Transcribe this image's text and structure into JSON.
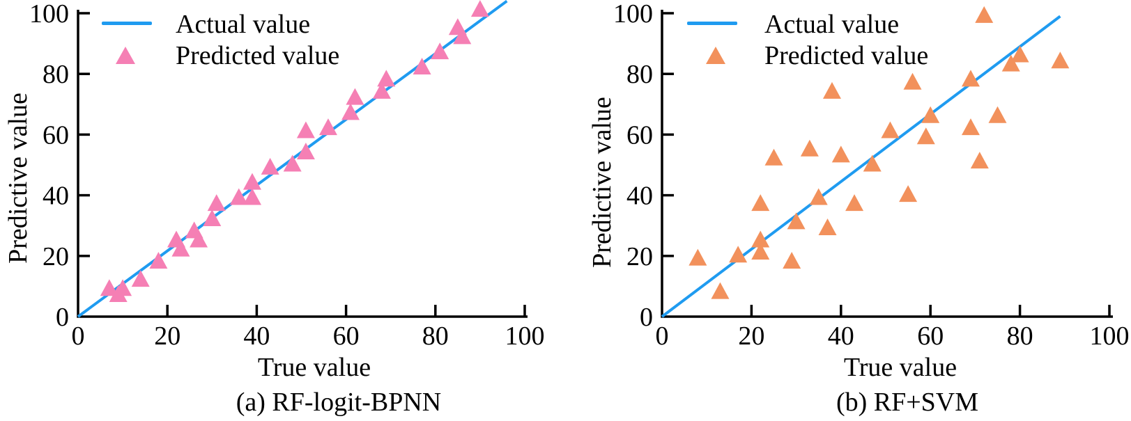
{
  "figure": {
    "type": "dual-scatter-comparison",
    "background": "#ffffff"
  },
  "colors": {
    "actual_line": "#1f9bf0",
    "predicted_a": "#f57fb4",
    "predicted_b": "#f2915c",
    "axis": "#000000",
    "text": "#000000"
  },
  "chart_data": [
    {
      "type": "scatter",
      "caption": "(a) RF-logit-BPNN",
      "xlabel": "True value",
      "ylabel": "Predictive value",
      "xlim": [
        0,
        100
      ],
      "ylim": [
        0,
        100
      ],
      "xticks": [
        0,
        20,
        40,
        60,
        80,
        100
      ],
      "yticks": [
        0,
        20,
        40,
        60,
        80,
        100
      ],
      "grid": false,
      "legend_position": "top-left-inside",
      "legend": {
        "entries": [
          {
            "label": "Actual value",
            "type": "line",
            "color": "#1f9bf0"
          },
          {
            "label": "Predicted value",
            "type": "triangle",
            "color": "#f57fb4"
          }
        ]
      },
      "line_series": {
        "name": "Actual value",
        "color": "#1f9bf0",
        "x": [
          0,
          96
        ],
        "y": [
          0,
          104
        ]
      },
      "scatter_series": {
        "name": "Predicted value",
        "marker": "triangle",
        "color": "#f57fb4",
        "points": [
          [
            7,
            9
          ],
          [
            9,
            7
          ],
          [
            10,
            9
          ],
          [
            14,
            12
          ],
          [
            18,
            18
          ],
          [
            22,
            25
          ],
          [
            23,
            22
          ],
          [
            26,
            28
          ],
          [
            27,
            25
          ],
          [
            30,
            32
          ],
          [
            31,
            37
          ],
          [
            36,
            39
          ],
          [
            39,
            39
          ],
          [
            39,
            44
          ],
          [
            43,
            49
          ],
          [
            48,
            50
          ],
          [
            51,
            54
          ],
          [
            51,
            61
          ],
          [
            56,
            62
          ],
          [
            61,
            67
          ],
          [
            62,
            72
          ],
          [
            68,
            74
          ],
          [
            69,
            78
          ],
          [
            77,
            82
          ],
          [
            81,
            87
          ],
          [
            85,
            95
          ],
          [
            86,
            92
          ],
          [
            90,
            101
          ]
        ]
      }
    },
    {
      "type": "scatter",
      "caption": "(b) RF+SVM",
      "xlabel": "True value",
      "ylabel": "Predictive value",
      "xlim": [
        0,
        100
      ],
      "ylim": [
        0,
        100
      ],
      "xticks": [
        0,
        20,
        40,
        60,
        80,
        100
      ],
      "yticks": [
        0,
        20,
        40,
        60,
        80,
        100
      ],
      "grid": false,
      "legend_position": "top-left-inside",
      "legend": {
        "entries": [
          {
            "label": "Actual value",
            "type": "line",
            "color": "#1f9bf0"
          },
          {
            "label": "Predicted value",
            "type": "triangle",
            "color": "#f2915c"
          }
        ]
      },
      "line_series": {
        "name": "Actual value",
        "color": "#1f9bf0",
        "x": [
          0,
          89
        ],
        "y": [
          0,
          99
        ]
      },
      "scatter_series": {
        "name": "Predicted value",
        "marker": "triangle",
        "color": "#f2915c",
        "points": [
          [
            8,
            19
          ],
          [
            13,
            8
          ],
          [
            17,
            20
          ],
          [
            22,
            21
          ],
          [
            22,
            25
          ],
          [
            22,
            37
          ],
          [
            25,
            52
          ],
          [
            29,
            18
          ],
          [
            30,
            31
          ],
          [
            33,
            55
          ],
          [
            35,
            39
          ],
          [
            37,
            29
          ],
          [
            38,
            74
          ],
          [
            40,
            53
          ],
          [
            43,
            37
          ],
          [
            47,
            50
          ],
          [
            51,
            61
          ],
          [
            55,
            40
          ],
          [
            56,
            77
          ],
          [
            59,
            59
          ],
          [
            60,
            66
          ],
          [
            69,
            62
          ],
          [
            69,
            78
          ],
          [
            71,
            51
          ],
          [
            72,
            99
          ],
          [
            75,
            66
          ],
          [
            78,
            83
          ],
          [
            80,
            86
          ],
          [
            89,
            84
          ]
        ]
      }
    }
  ]
}
